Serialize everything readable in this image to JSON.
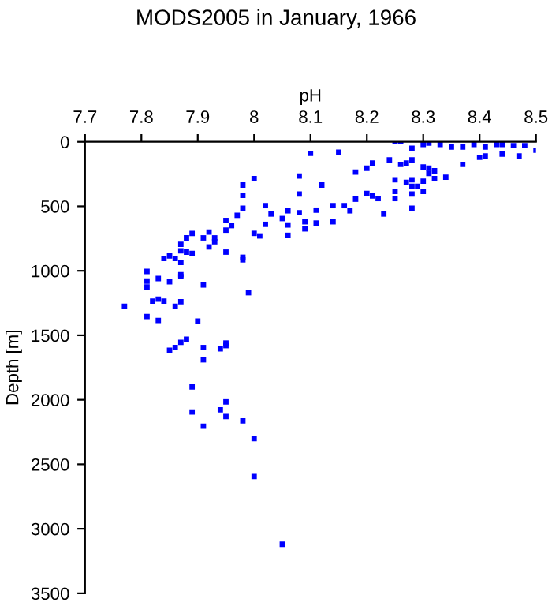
{
  "chart_data": {
    "type": "scatter",
    "title": "MODS2005 in January, 1966",
    "xlabel": "pH",
    "ylabel": "Depth [m]",
    "xlim": [
      7.7,
      8.5
    ],
    "xticks": [
      7.7,
      7.8,
      7.9,
      8,
      8.1,
      8.2,
      8.3,
      8.4,
      8.5
    ],
    "ylim": [
      3500,
      0
    ],
    "yticks": [
      0,
      500,
      1000,
      1500,
      2000,
      2500,
      3000,
      3500
    ],
    "marker": "square",
    "grid": false,
    "legend": false,
    "series": [
      {
        "color": "#0000ff",
        "x": [
          8.25,
          8.26,
          8.28,
          8.3,
          8.31,
          8.33,
          8.35,
          8.37,
          8.39,
          8.41,
          8.43,
          8.44,
          8.46,
          8.48,
          8.5,
          8.47,
          8.44,
          8.41,
          8.4,
          8.37,
          8.34,
          8.32,
          8.31,
          8.3,
          8.28,
          8.27,
          8.26,
          8.24,
          8.21,
          8.2,
          8.18,
          8.15,
          8.1,
          8.12,
          8.08,
          8.08,
          8.0,
          7.98,
          7.98,
          7.98,
          7.97,
          8.02,
          8.03,
          8.02,
          8.0,
          8.01,
          8.05,
          8.06,
          8.06,
          8.06,
          8.08,
          8.09,
          8.09,
          8.11,
          8.11,
          8.14,
          8.14,
          8.16,
          8.17,
          8.18,
          8.2,
          8.21,
          8.22,
          8.23,
          8.25,
          8.25,
          8.27,
          8.28,
          8.28,
          8.28,
          8.29,
          8.3,
          8.25,
          8.28,
          8.3,
          8.32,
          8.31,
          7.95,
          7.96,
          7.95,
          7.93,
          7.93,
          7.92,
          7.91,
          7.92,
          7.89,
          7.88,
          7.87,
          7.89,
          7.88,
          7.87,
          7.86,
          7.85,
          7.84,
          7.87,
          7.95,
          7.98,
          7.98,
          7.81,
          7.81,
          7.81,
          7.83,
          7.85,
          7.87,
          7.87,
          7.91,
          7.99,
          7.77,
          7.82,
          7.83,
          7.84,
          7.86,
          7.87,
          7.81,
          7.83,
          7.9,
          7.85,
          7.86,
          7.87,
          7.88,
          7.91,
          7.91,
          7.94,
          7.95,
          7.95,
          7.89,
          7.89,
          7.91,
          7.94,
          7.95,
          7.95,
          7.98,
          8.0,
          8.0,
          8.05
        ],
        "values": [
          0,
          0,
          50,
          20,
          10,
          20,
          40,
          40,
          20,
          40,
          20,
          20,
          30,
          30,
          65,
          110,
          95,
          110,
          120,
          175,
          275,
          285,
          245,
          195,
          140,
          165,
          175,
          140,
          165,
          205,
          235,
          80,
          90,
          335,
          265,
          405,
          285,
          335,
          415,
          515,
          570,
          495,
          560,
          640,
          710,
          730,
          595,
          535,
          645,
          725,
          550,
          620,
          675,
          530,
          630,
          495,
          620,
          495,
          535,
          445,
          400,
          420,
          440,
          560,
          385,
          440,
          315,
          345,
          405,
          515,
          345,
          385,
          295,
          295,
          305,
          225,
          205,
          610,
          650,
          685,
          745,
          775,
          815,
          745,
          700,
          710,
          745,
          795,
          865,
          855,
          845,
          905,
          885,
          905,
          935,
          855,
          895,
          915,
          1005,
          1080,
          1125,
          1060,
          1085,
          1030,
          1045,
          1110,
          1170,
          1275,
          1235,
          1220,
          1235,
          1275,
          1240,
          1355,
          1385,
          1390,
          1616,
          1595,
          1555,
          1530,
          1595,
          1690,
          1605,
          1560,
          1580,
          1900,
          2095,
          2205,
          2078,
          2016,
          2130,
          2163,
          2301,
          2595,
          3120
        ]
      }
    ]
  }
}
